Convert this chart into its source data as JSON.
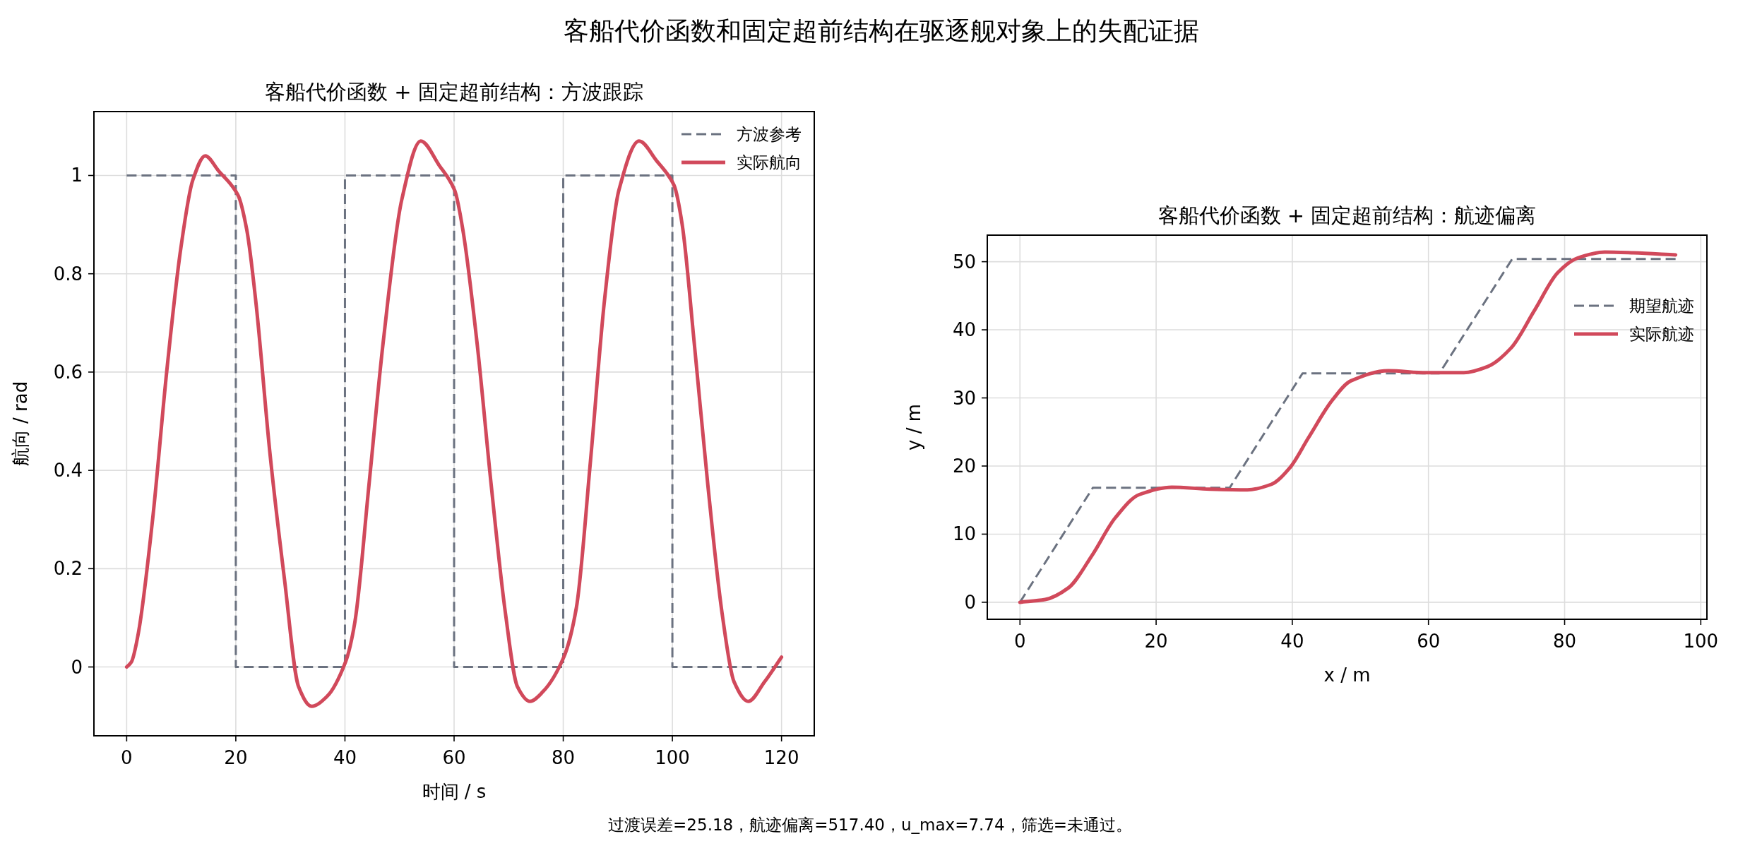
{
  "chart_data": [
    {
      "type": "line",
      "title": "客船代价函数 + 固定超前结构：方波跟踪",
      "xlabel": "时间 / s",
      "ylabel": "航向 / rad",
      "xlim": [
        -6,
        126
      ],
      "ylim": [
        -0.14,
        1.13
      ],
      "xticks": [
        0,
        20,
        40,
        60,
        80,
        100,
        120
      ],
      "yticks": [
        0,
        0.2,
        0.4,
        0.6,
        0.8,
        1
      ],
      "grid": true,
      "legend": "top right",
      "annotations": [
        "客船代价函数和固定超前结构在驱逐舰对象上的失配证据",
        "过渡误差=25.18，航迹偏离=517.40，u_max=7.74，筛选=未通过。"
      ],
      "series": [
        {
          "name": "方波参考",
          "color": "#6b7280",
          "line_style": "dashed",
          "x": [
            0,
            20,
            20,
            40,
            40,
            60,
            60,
            80,
            80,
            100,
            100,
            120
          ],
          "values": [
            1,
            1,
            0,
            0,
            1,
            1,
            0,
            0,
            1,
            1,
            0,
            0
          ]
        },
        {
          "name": "实际航向",
          "color": "#d1495b",
          "line_style": "solid",
          "x": [
            0,
            0.86,
            2.16,
            4.75,
            7.33,
            9.9,
            12.1,
            14.4,
            16.8,
            20.4,
            22,
            23.7,
            26.3,
            28.9,
            31.5,
            33.9,
            36.7,
            40.1,
            41.8,
            44.4,
            47,
            50.4,
            53.9,
            57.3,
            60.1,
            61.6,
            64.2,
            66.8,
            69.4,
            71.6,
            73.9,
            76.3,
            80.1,
            82.4,
            85,
            87.6,
            90.2,
            93.9,
            97.1,
            100.3,
            101.8,
            104,
            106.5,
            109.1,
            111.3,
            113.9,
            116.9,
            120
          ],
          "values": [
            0,
            0.01,
            0.07,
            0.3,
            0.6,
            0.85,
            0.99,
            1.04,
            1.01,
            0.96,
            0.89,
            0.74,
            0.43,
            0.18,
            -0.04,
            -0.08,
            -0.06,
            0.01,
            0.09,
            0.37,
            0.66,
            0.95,
            1.07,
            1.02,
            0.97,
            0.89,
            0.66,
            0.37,
            0.11,
            -0.04,
            -0.07,
            -0.05,
            0.02,
            0.12,
            0.42,
            0.75,
            0.97,
            1.07,
            1.03,
            0.98,
            0.9,
            0.66,
            0.37,
            0.11,
            -0.03,
            -0.07,
            -0.03,
            0.02
          ]
        }
      ]
    },
    {
      "type": "line",
      "title": "客船代价函数 + 固定超前结构：航迹偏离",
      "xlabel": "x / m",
      "ylabel": "y / m",
      "xlim": [
        -4.8,
        100.9
      ],
      "ylim": [
        -2.5,
        53.9
      ],
      "xticks": [
        0,
        20,
        40,
        60,
        80,
        100
      ],
      "yticks": [
        0,
        10,
        20,
        30,
        40,
        50
      ],
      "grid": true,
      "legend": "top right",
      "series": [
        {
          "name": "期望航迹",
          "color": "#6b7280",
          "line_style": "dashed",
          "x": [
            0,
            10.7,
            30.8,
            41.5,
            61.6,
            72.3,
            96.3
          ],
          "values": [
            0,
            16.8,
            16.8,
            33.6,
            33.6,
            50.4,
            50.4
          ]
        },
        {
          "name": "实际航迹",
          "color": "#d1495b",
          "line_style": "solid",
          "x": [
            0,
            3.7,
            7.1,
            10.6,
            14,
            17.5,
            22.3,
            27.9,
            33.4,
            36.9,
            39.6,
            42.4,
            45.9,
            48.6,
            54.1,
            59.7,
            65.2,
            68.7,
            72.1,
            75.6,
            79,
            81.8,
            85.9,
            90.1,
            96.3
          ],
          "values": [
            0,
            0.4,
            2.1,
            6.9,
            12.4,
            15.8,
            16.9,
            16.6,
            16.5,
            17.3,
            19.7,
            24.2,
            29.7,
            32.5,
            34,
            33.7,
            33.7,
            34.6,
            37.3,
            42.9,
            48.4,
            50.5,
            51.4,
            51.3,
            51
          ]
        }
      ]
    }
  ]
}
